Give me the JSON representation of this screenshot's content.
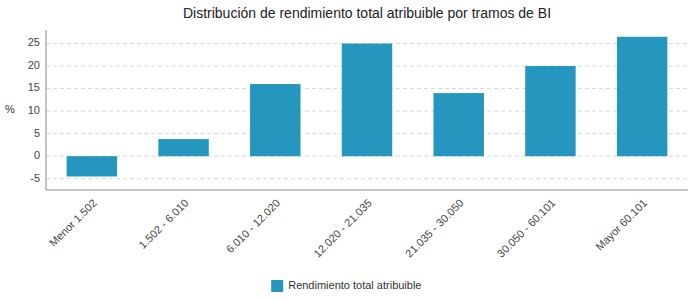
{
  "chart_data": {
    "type": "bar",
    "title": "Distribución de rendimiento total atribuible por tramos de BI",
    "ylabel": "%",
    "categories": [
      "Menor 1.502",
      "1.502 - 6.010",
      "6.010 - 12.020",
      "12.020 - 21.035",
      "21.035 - 30.050",
      "30.050 - 60.101",
      "Mayor 60.101"
    ],
    "series": [
      {
        "name": "Rendimiento total atribuible",
        "color": "#2596BE",
        "values": [
          -4.5,
          3.8,
          16.0,
          25.0,
          14.0,
          20.0,
          26.5
        ]
      }
    ],
    "ylim": [
      -7.5,
      28
    ],
    "yticks": [
      -5,
      0,
      5,
      10,
      15,
      20,
      25
    ],
    "grid": true,
    "legend": "bottom"
  }
}
